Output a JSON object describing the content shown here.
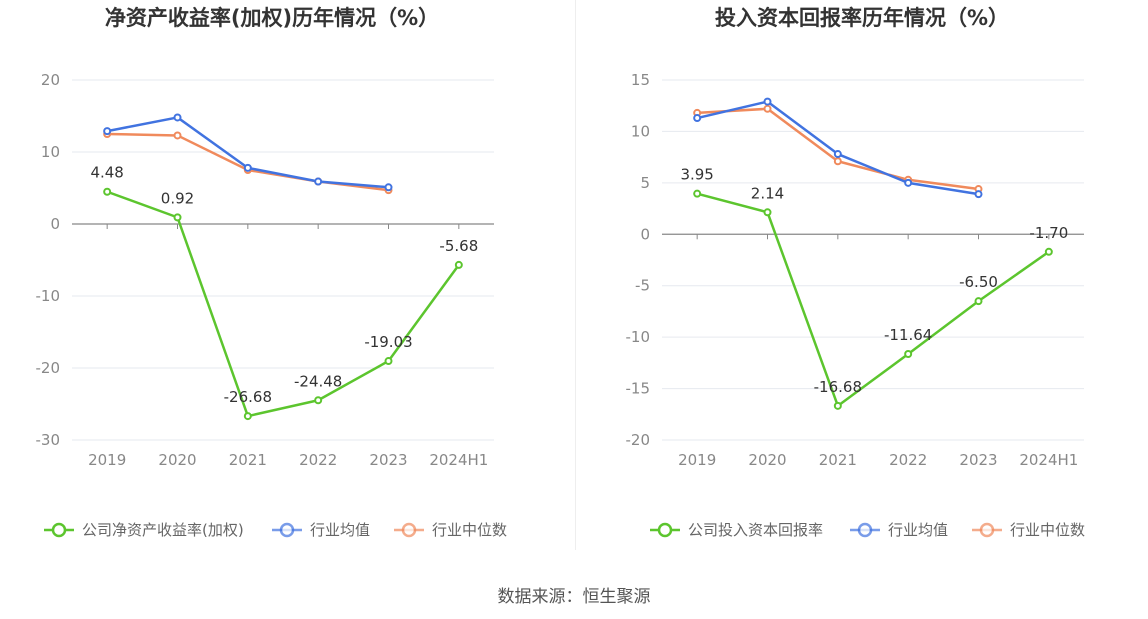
{
  "chart_data": [
    {
      "type": "line",
      "title": "净资产收益率(加权)历年情况（%）",
      "categories": [
        "2019",
        "2020",
        "2021",
        "2022",
        "2023",
        "2024H1"
      ],
      "ylim": [
        -30,
        20
      ],
      "yticks": [
        20,
        10,
        0,
        -10,
        -20,
        -30
      ],
      "grid": true,
      "legend_position": "bottom",
      "series": [
        {
          "name": "公司净资产收益率(加权)",
          "color": "#5cc52e",
          "values": [
            4.48,
            0.92,
            -26.68,
            -24.48,
            -19.03,
            -5.68
          ],
          "labels": [
            "4.48",
            "0.92",
            "-26.68",
            "-24.48",
            "-19.03",
            "-5.68"
          ]
        },
        {
          "name": "行业均值",
          "color": "#4173e0",
          "values": [
            12.9,
            14.8,
            7.8,
            5.9,
            5.1,
            null
          ]
        },
        {
          "name": "行业中位数",
          "color": "#f08a5c",
          "values": [
            12.5,
            12.3,
            7.5,
            5.9,
            4.7,
            null
          ]
        }
      ]
    },
    {
      "type": "line",
      "title": "投入资本回报率历年情况（%）",
      "categories": [
        "2019",
        "2020",
        "2021",
        "2022",
        "2023",
        "2024H1"
      ],
      "ylim": [
        -20,
        15
      ],
      "yticks": [
        15,
        10,
        5,
        0,
        -5,
        -10,
        -15,
        -20
      ],
      "grid": true,
      "legend_position": "bottom",
      "series": [
        {
          "name": "公司投入资本回报率",
          "color": "#5cc52e",
          "values": [
            3.95,
            2.14,
            -16.68,
            -11.64,
            -6.5,
            -1.7
          ],
          "labels": [
            "3.95",
            "2.14",
            "-16.68",
            "-11.64",
            "-6.50",
            "-1.70"
          ]
        },
        {
          "name": "行业均值",
          "color": "#4173e0",
          "values": [
            11.3,
            12.9,
            7.8,
            5.0,
            3.9,
            null
          ]
        },
        {
          "name": "行业中位数",
          "color": "#f08a5c",
          "values": [
            11.8,
            12.2,
            7.1,
            5.3,
            4.4,
            null
          ]
        }
      ]
    }
  ],
  "source": "数据来源：恒生聚源"
}
